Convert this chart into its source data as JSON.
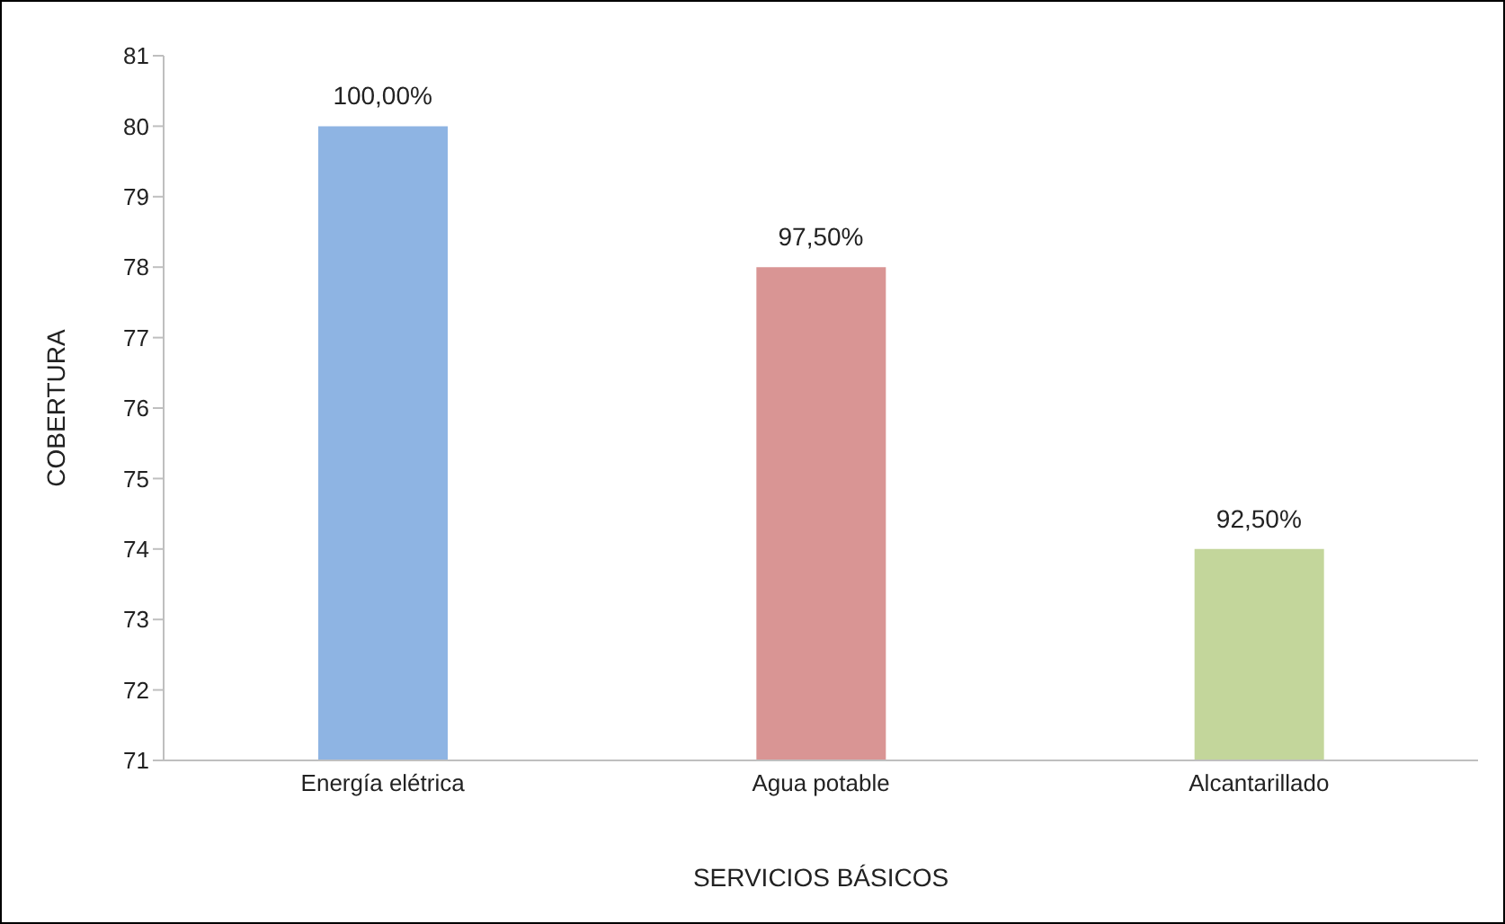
{
  "chart_data": {
    "type": "bar",
    "xlabel": "SERVICIOS BÁSICOS",
    "ylabel": "COBERTURA",
    "categories": [
      "Energía elétrica",
      "Agua potable",
      "Alcantarillado"
    ],
    "values": [
      80,
      78,
      74
    ],
    "colors": [
      "#8eb4e3",
      "#d99594",
      "#c3d69b"
    ],
    "annotations": [
      {
        "text": "100,00%",
        "x": "Energía elétrica",
        "y": 80
      },
      {
        "text": "97,50%",
        "x": "Agua potable",
        "y": 78
      },
      {
        "text": "92,50%",
        "x": "Alcantarillado",
        "y": 74
      }
    ],
    "ylim": [
      71,
      81
    ],
    "yticks": [
      71,
      72,
      73,
      74,
      75,
      76,
      77,
      78,
      79,
      80,
      81
    ],
    "grid": false,
    "legend": false
  }
}
